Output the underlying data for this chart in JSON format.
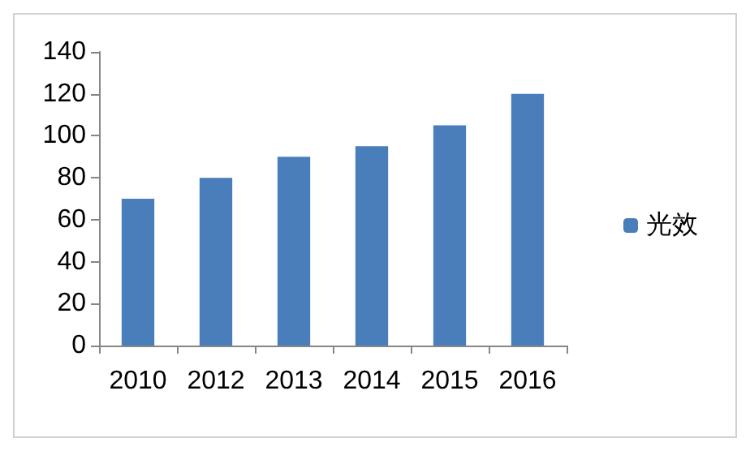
{
  "chart_data": {
    "type": "bar",
    "categories": [
      "2010",
      "2012",
      "2013",
      "2014",
      "2015",
      "2016"
    ],
    "series": [
      {
        "name": "光效",
        "color": "#4a7ebb",
        "values": [
          70,
          80,
          90,
          95,
          105,
          120
        ]
      }
    ],
    "ylim": [
      0,
      140
    ],
    "yticks": [
      0,
      20,
      40,
      60,
      80,
      100,
      120,
      140
    ],
    "grid": false,
    "legend": "right"
  }
}
